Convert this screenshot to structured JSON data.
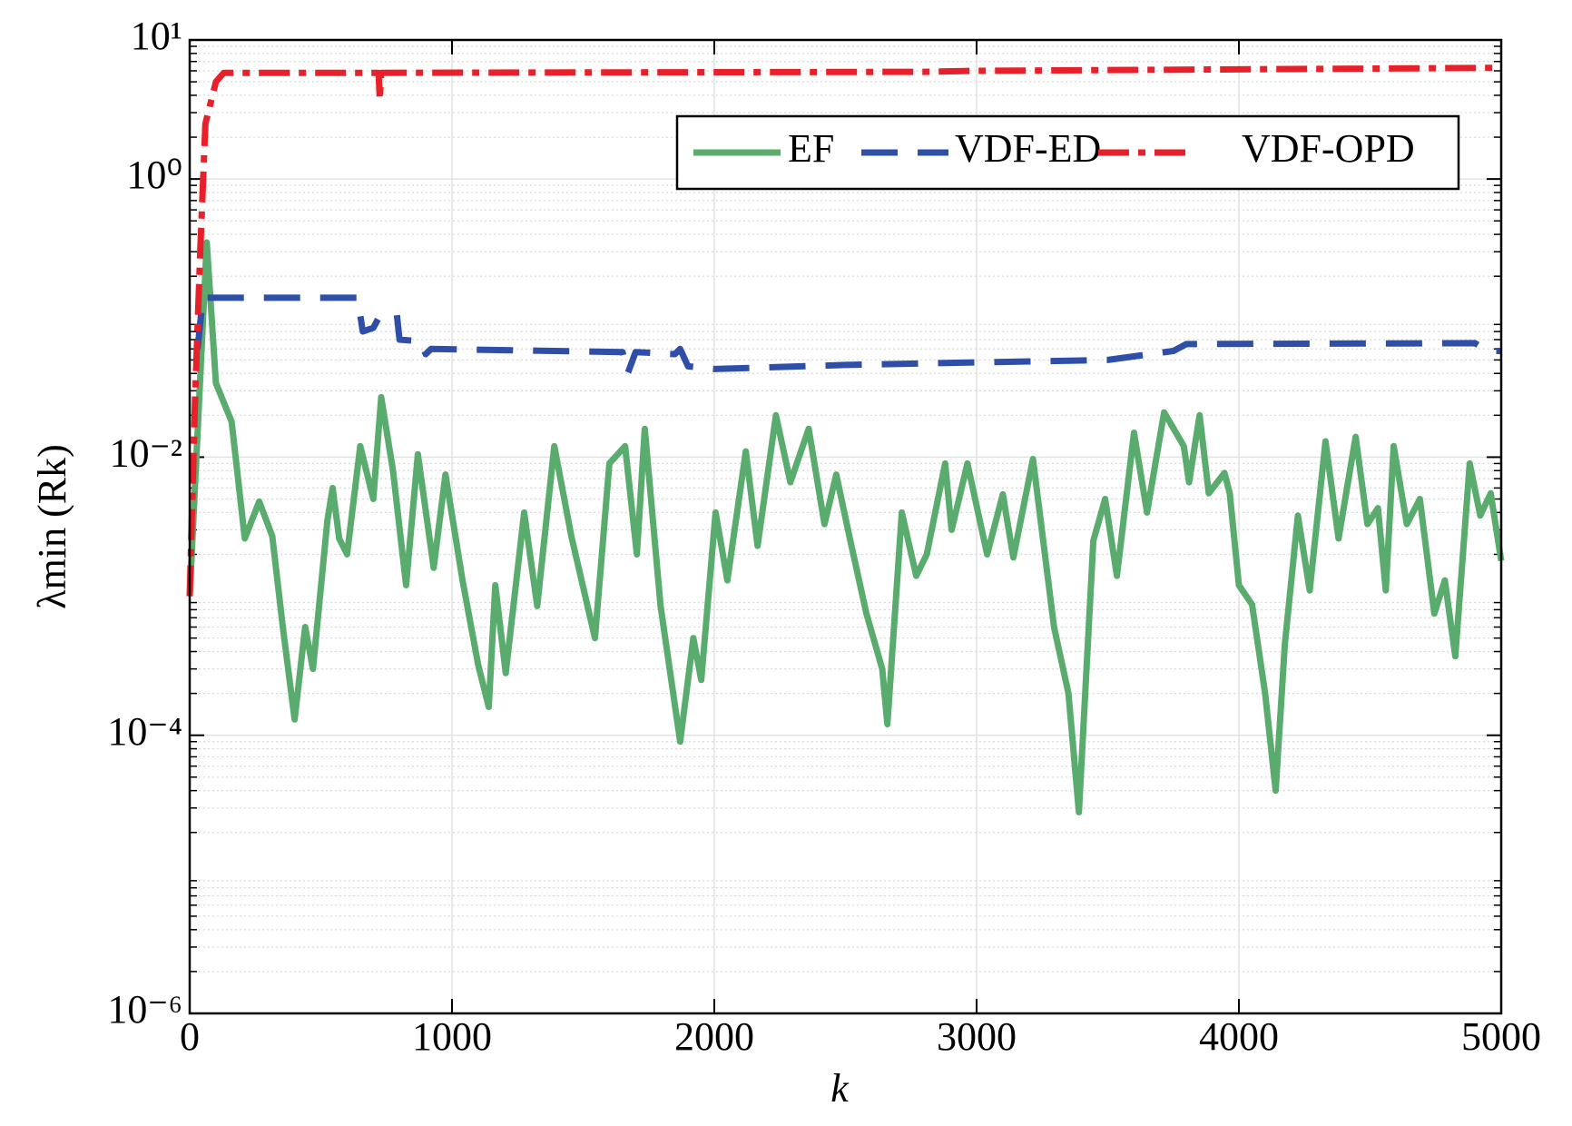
{
  "chart_data": {
    "type": "line",
    "xlabel": "k",
    "ylabel": "λmin (Rk)",
    "xlim": [
      0,
      5000
    ],
    "xticks": [
      0,
      1000,
      2000,
      3000,
      4000,
      5000
    ],
    "ylim": [
      1e-06,
      10
    ],
    "yticks": [
      {
        "value": 1e-06,
        "label": "10⁻⁶"
      },
      {
        "value": 0.0001,
        "label": "10⁻⁴"
      },
      {
        "value": 0.01,
        "label": "10⁻²"
      },
      {
        "value": 1,
        "label": "10⁰"
      },
      {
        "value": 10,
        "label": "10¹"
      }
    ],
    "log_y": true,
    "grid": true,
    "minor_grid": true,
    "legend": "upper right",
    "series": [
      {
        "name": "EF",
        "color": "#5aab6e",
        "linestyle": "solid",
        "x": [
          0,
          65,
          100,
          160,
          210,
          265,
          315,
          355,
          400,
          440,
          470,
          525,
          545,
          570,
          600,
          650,
          700,
          730,
          775,
          825,
          870,
          930,
          975,
          1040,
          1100,
          1140,
          1165,
          1205,
          1275,
          1325,
          1390,
          1455,
          1545,
          1600,
          1660,
          1705,
          1735,
          1795,
          1870,
          1920,
          1950,
          2005,
          2050,
          2120,
          2165,
          2235,
          2290,
          2360,
          2420,
          2465,
          2515,
          2580,
          2640,
          2660,
          2715,
          2770,
          2810,
          2880,
          2905,
          2965,
          3040,
          3100,
          3140,
          3215,
          3295,
          3350,
          3390,
          3445,
          3490,
          3535,
          3600,
          3650,
          3715,
          3790,
          3810,
          3850,
          3885,
          3945,
          3965,
          4000,
          4050,
          4100,
          4140,
          4175,
          4225,
          4270,
          4330,
          4380,
          4445,
          4490,
          4530,
          4560,
          4590,
          4640,
          4690,
          4745,
          4785,
          4825,
          4880,
          4920,
          4960,
          5000
        ],
        "values": [
          0.001,
          0.35,
          0.034,
          0.018,
          0.0026,
          0.0048,
          0.0027,
          0.0006,
          0.00013,
          0.0006,
          0.0003,
          0.0035,
          0.006,
          0.0026,
          0.002,
          0.012,
          0.005,
          0.027,
          0.008,
          0.0012,
          0.0105,
          0.0016,
          0.0075,
          0.0013,
          0.00032,
          0.00016,
          0.0012,
          0.00028,
          0.004,
          0.00085,
          0.012,
          0.0027,
          0.0005,
          0.009,
          0.012,
          0.002,
          0.016,
          0.00085,
          9e-05,
          0.0005,
          0.00025,
          0.004,
          0.0013,
          0.011,
          0.0023,
          0.02,
          0.0066,
          0.016,
          0.0033,
          0.0075,
          0.0027,
          0.00075,
          0.0003,
          0.00012,
          0.004,
          0.0014,
          0.002,
          0.009,
          0.003,
          0.009,
          0.002,
          0.0054,
          0.0019,
          0.0097,
          0.0006,
          0.0002,
          2.8e-05,
          0.0025,
          0.005,
          0.0014,
          0.015,
          0.004,
          0.021,
          0.012,
          0.0066,
          0.02,
          0.0055,
          0.0077,
          0.0055,
          0.0012,
          0.00087,
          0.0002,
          4e-05,
          0.00045,
          0.0038,
          0.0011,
          0.013,
          0.0026,
          0.014,
          0.0033,
          0.0043,
          0.0011,
          0.012,
          0.0033,
          0.005,
          0.00075,
          0.0013,
          0.00037,
          0.009,
          0.0038,
          0.0055,
          0.0018
        ]
      },
      {
        "name": "VDF-ED",
        "color": "#2e4ea8",
        "linestyle": "dashed",
        "x": [
          30,
          50,
          640,
          660,
          700,
          720,
          790,
          800,
          880,
          900,
          920,
          1650,
          1670,
          1700,
          1850,
          1870,
          1900,
          2000,
          2500,
          3000,
          3500,
          3750,
          3800,
          4900,
          4950,
          5000
        ],
        "values": [
          0.06,
          0.14,
          0.14,
          0.08,
          0.085,
          0.1,
          0.105,
          0.07,
          0.068,
          0.055,
          0.06,
          0.057,
          0.04,
          0.057,
          0.055,
          0.06,
          0.045,
          0.043,
          0.046,
          0.048,
          0.05,
          0.058,
          0.065,
          0.066,
          0.058,
          0.058
        ]
      },
      {
        "name": "VDF-OPD",
        "color": "#e8202a",
        "linestyle": "dashdot",
        "x": [
          0,
          20,
          40,
          60,
          100,
          130,
          720,
          725,
          730,
          2800,
          3000,
          5000
        ],
        "values": [
          0.001,
          0.025,
          0.3,
          2.5,
          5.0,
          5.8,
          5.8,
          3.7,
          5.8,
          5.9,
          6.0,
          6.3
        ]
      }
    ]
  }
}
